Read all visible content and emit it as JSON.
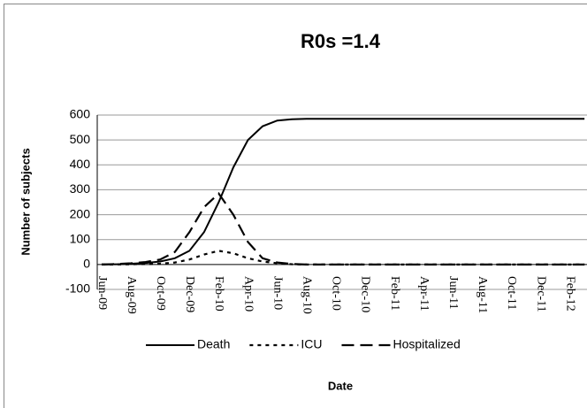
{
  "chart_data": {
    "type": "line",
    "title": "R0s =1.4",
    "x_label": "Date",
    "y_label": "Number of subjects",
    "categories": [
      "Jun-09",
      null,
      "Aug-09",
      null,
      "Oct-09",
      null,
      "Dec-09",
      null,
      "Feb-10",
      null,
      "Apr-10",
      null,
      "Jun-10",
      null,
      "Aug-10",
      null,
      "Oct-10",
      null,
      "Dec-10",
      null,
      "Feb-11",
      null,
      "Apr-11",
      null,
      "Jun-11",
      null,
      "Aug-11",
      null,
      "Oct-11",
      null,
      "Dec-11",
      null,
      "Feb-12",
      null
    ],
    "series": [
      {
        "name": "Death",
        "color": "#000000",
        "line_style": "solid",
        "values": [
          0,
          1,
          3,
          6,
          12,
          25,
          55,
          130,
          250,
          390,
          500,
          555,
          578,
          583,
          585,
          585,
          585,
          585,
          585,
          585,
          585,
          585,
          585,
          585,
          585,
          585,
          585,
          585,
          585,
          585,
          585,
          585,
          585,
          585
        ]
      },
      {
        "name": "ICU",
        "color": "#000000",
        "line_style": "dotted",
        "values": [
          0,
          0,
          1,
          2,
          3,
          8,
          20,
          40,
          55,
          45,
          25,
          12,
          5,
          1,
          0,
          0,
          0,
          0,
          0,
          0,
          0,
          0,
          0,
          0,
          0,
          0,
          0,
          0,
          0,
          0,
          0,
          0,
          0,
          0
        ]
      },
      {
        "name": "Hospitalized",
        "color": "#000000",
        "line_style": "dashed",
        "values": [
          0,
          2,
          5,
          10,
          20,
          50,
          130,
          230,
          285,
          200,
          90,
          25,
          8,
          2,
          0,
          0,
          0,
          0,
          0,
          0,
          0,
          0,
          0,
          0,
          0,
          0,
          0,
          0,
          0,
          0,
          0,
          0,
          0,
          0
        ]
      }
    ],
    "ylim": [
      -100,
      600
    ],
    "yticks": [
      -100,
      0,
      100,
      200,
      300,
      400,
      500,
      600
    ],
    "grid": true,
    "legend": "bottom"
  }
}
